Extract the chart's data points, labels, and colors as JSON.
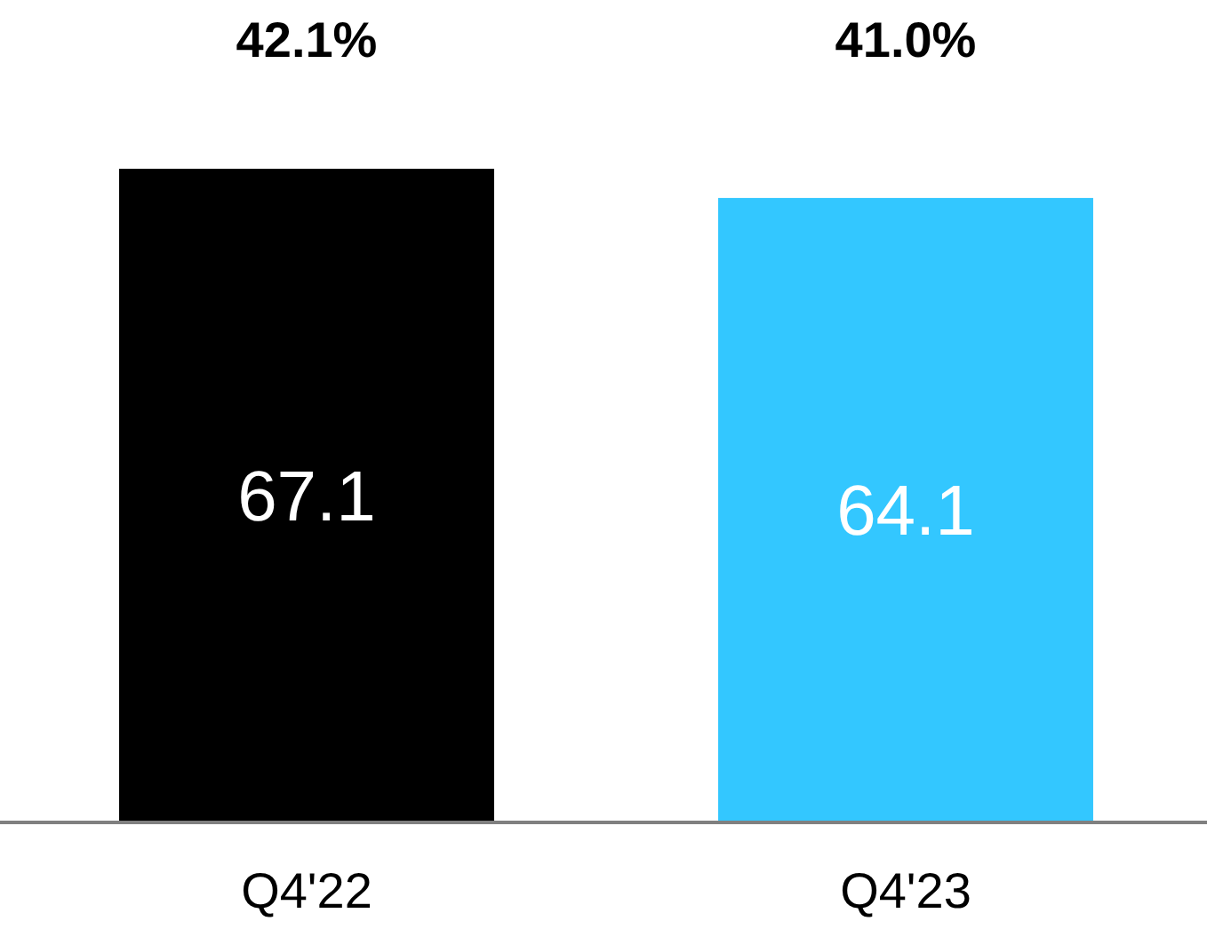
{
  "chart_data": {
    "type": "bar",
    "categories": [
      "Q4'22",
      "Q4'23"
    ],
    "values": [
      67.1,
      64.1
    ],
    "colors": [
      "#000000",
      "#33c7ff"
    ],
    "tick_labels": "x",
    "data_labels": true,
    "annotations": [
      "42.1%",
      "41.0%"
    ]
  }
}
